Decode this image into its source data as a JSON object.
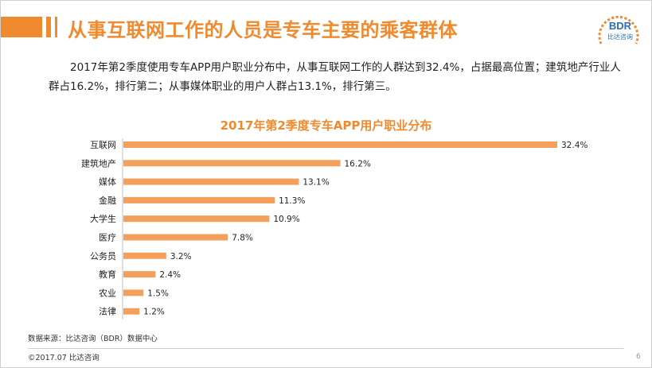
{
  "header": {
    "title": "从事互联网工作的人员是专车主要的乘客群体",
    "logo_text": "BDR",
    "logo_subtext": "比达咨询"
  },
  "summary": "2017年第2季度使用专车APP用户职业分布中，从事互联网工作的人群达到32.4%，占据最高位置；建筑地产行业人群占16.2%，排行第二；从事媒体职业的用户人群占13.1%，排行第三。",
  "chart_data": {
    "type": "bar",
    "orientation": "horizontal",
    "title": "2017年第2季度专车APP用户职业分布",
    "categories": [
      "互联网",
      "建筑地产",
      "媒体",
      "金融",
      "大学生",
      "医疗",
      "公务员",
      "教育",
      "农业",
      "法律"
    ],
    "values": [
      32.4,
      16.2,
      13.1,
      11.3,
      10.9,
      7.8,
      3.2,
      2.4,
      1.5,
      1.2
    ],
    "value_labels": [
      "32.4%",
      "16.2%",
      "13.1%",
      "11.3%",
      "10.9%",
      "7.8%",
      "3.2%",
      "2.4%",
      "1.5%",
      "1.2%"
    ],
    "unit": "%",
    "color": "#f5a05a",
    "grid": false,
    "legend": "none"
  },
  "footer": {
    "source": "数据来源：比达咨询（BDR）数据中心",
    "copyright": "©2017.07   比达咨询",
    "page": "6"
  },
  "colors": {
    "accent": "#f08a2e",
    "bar": "#f5a05a",
    "logo_blue": "#2f6fb0"
  }
}
